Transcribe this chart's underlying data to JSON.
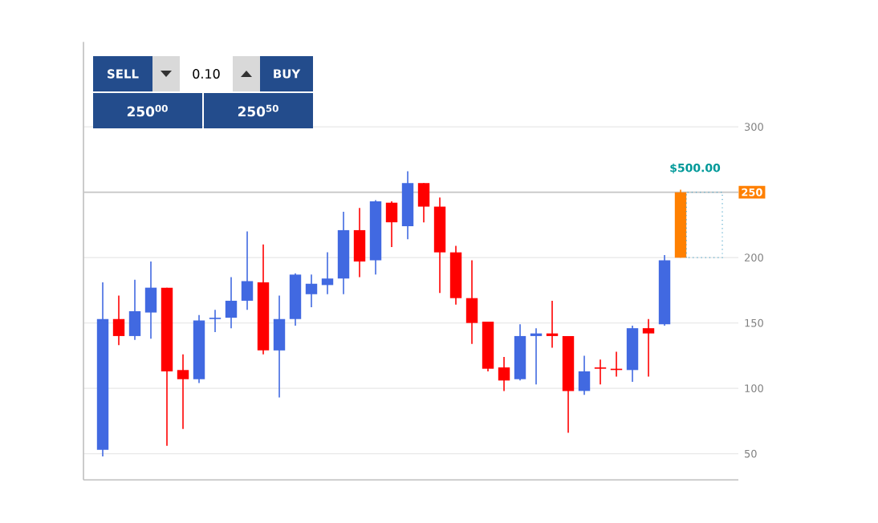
{
  "chart_data": {
    "type": "candlestick",
    "categories": [
      null,
      null,
      null,
      null,
      null,
      null,
      null,
      null,
      null,
      null,
      null,
      null,
      null,
      null,
      null,
      null,
      null,
      null,
      null,
      null,
      null,
      null,
      null,
      null,
      null,
      null,
      null,
      null,
      null,
      null,
      null,
      null,
      null,
      null,
      null,
      null,
      null
    ],
    "ohlc": [
      [
        53,
        181,
        48,
        153
      ],
      [
        153,
        171,
        133,
        140
      ],
      [
        140,
        183,
        137,
        159
      ],
      [
        158,
        197,
        138,
        177
      ],
      [
        177,
        177,
        56,
        113
      ],
      [
        114,
        126,
        69,
        107
      ],
      [
        107,
        156,
        104,
        152
      ],
      [
        153,
        160,
        143,
        154
      ],
      [
        154,
        185,
        146,
        167
      ],
      [
        167,
        220,
        160,
        182
      ],
      [
        181,
        210,
        126,
        129
      ],
      [
        129,
        171,
        93,
        153
      ],
      [
        153,
        188,
        148,
        187
      ],
      [
        172,
        187,
        162,
        180
      ],
      [
        179,
        204,
        172,
        184
      ],
      [
        184,
        235,
        172,
        221
      ],
      [
        221,
        238,
        185,
        197
      ],
      [
        198,
        244,
        187,
        243
      ],
      [
        242,
        243,
        208,
        227
      ],
      [
        224,
        266,
        214,
        257
      ],
      [
        257,
        257,
        227,
        239
      ],
      [
        239,
        246,
        173,
        204
      ],
      [
        204,
        209,
        164,
        169
      ],
      [
        169,
        198,
        134,
        150
      ],
      [
        151,
        151,
        113,
        115
      ],
      [
        116,
        124,
        98,
        106
      ],
      [
        107,
        149,
        106,
        140
      ],
      [
        140,
        146,
        103,
        142
      ],
      [
        142,
        167,
        131,
        140
      ],
      [
        140,
        140,
        66,
        98
      ],
      [
        98,
        125,
        95,
        113
      ],
      [
        116,
        122,
        103,
        115
      ],
      [
        115,
        128,
        109,
        114
      ],
      [
        114,
        148,
        105,
        146
      ],
      [
        146,
        153,
        109,
        142
      ],
      [
        149,
        202,
        148,
        198
      ],
      [
        200,
        252,
        200,
        250
      ]
    ],
    "colors": [
      "#4169e1",
      "#ff0000",
      "#4169e1",
      "#4169e1",
      "#ff0000",
      "#ff0000",
      "#4169e1",
      "#4169e1",
      "#4169e1",
      "#4169e1",
      "#ff0000",
      "#4169e1",
      "#4169e1",
      "#4169e1",
      "#4169e1",
      "#4169e1",
      "#ff0000",
      "#4169e1",
      "#ff0000",
      "#4169e1",
      "#ff0000",
      "#ff0000",
      "#ff0000",
      "#ff0000",
      "#ff0000",
      "#ff0000",
      "#4169e1",
      "#4169e1",
      "#ff0000",
      "#ff0000",
      "#4169e1",
      "#ff0000",
      "#ff0000",
      "#4169e1",
      "#ff0000",
      "#4169e1",
      "#ff8000"
    ],
    "ylim": [
      30,
      365
    ],
    "yticks": [
      50,
      100,
      150,
      200,
      250,
      300
    ],
    "grid": "y",
    "tick_labels": "y",
    "ref_lines": [
      {
        "axis": "y",
        "value": 250,
        "label": "250"
      }
    ],
    "annotations": [
      {
        "text": "$500.00",
        "y": 250
      },
      "SELL",
      "0.10",
      "BUY",
      "250$^{00}$",
      "250$^{50}$"
    ]
  }
}
